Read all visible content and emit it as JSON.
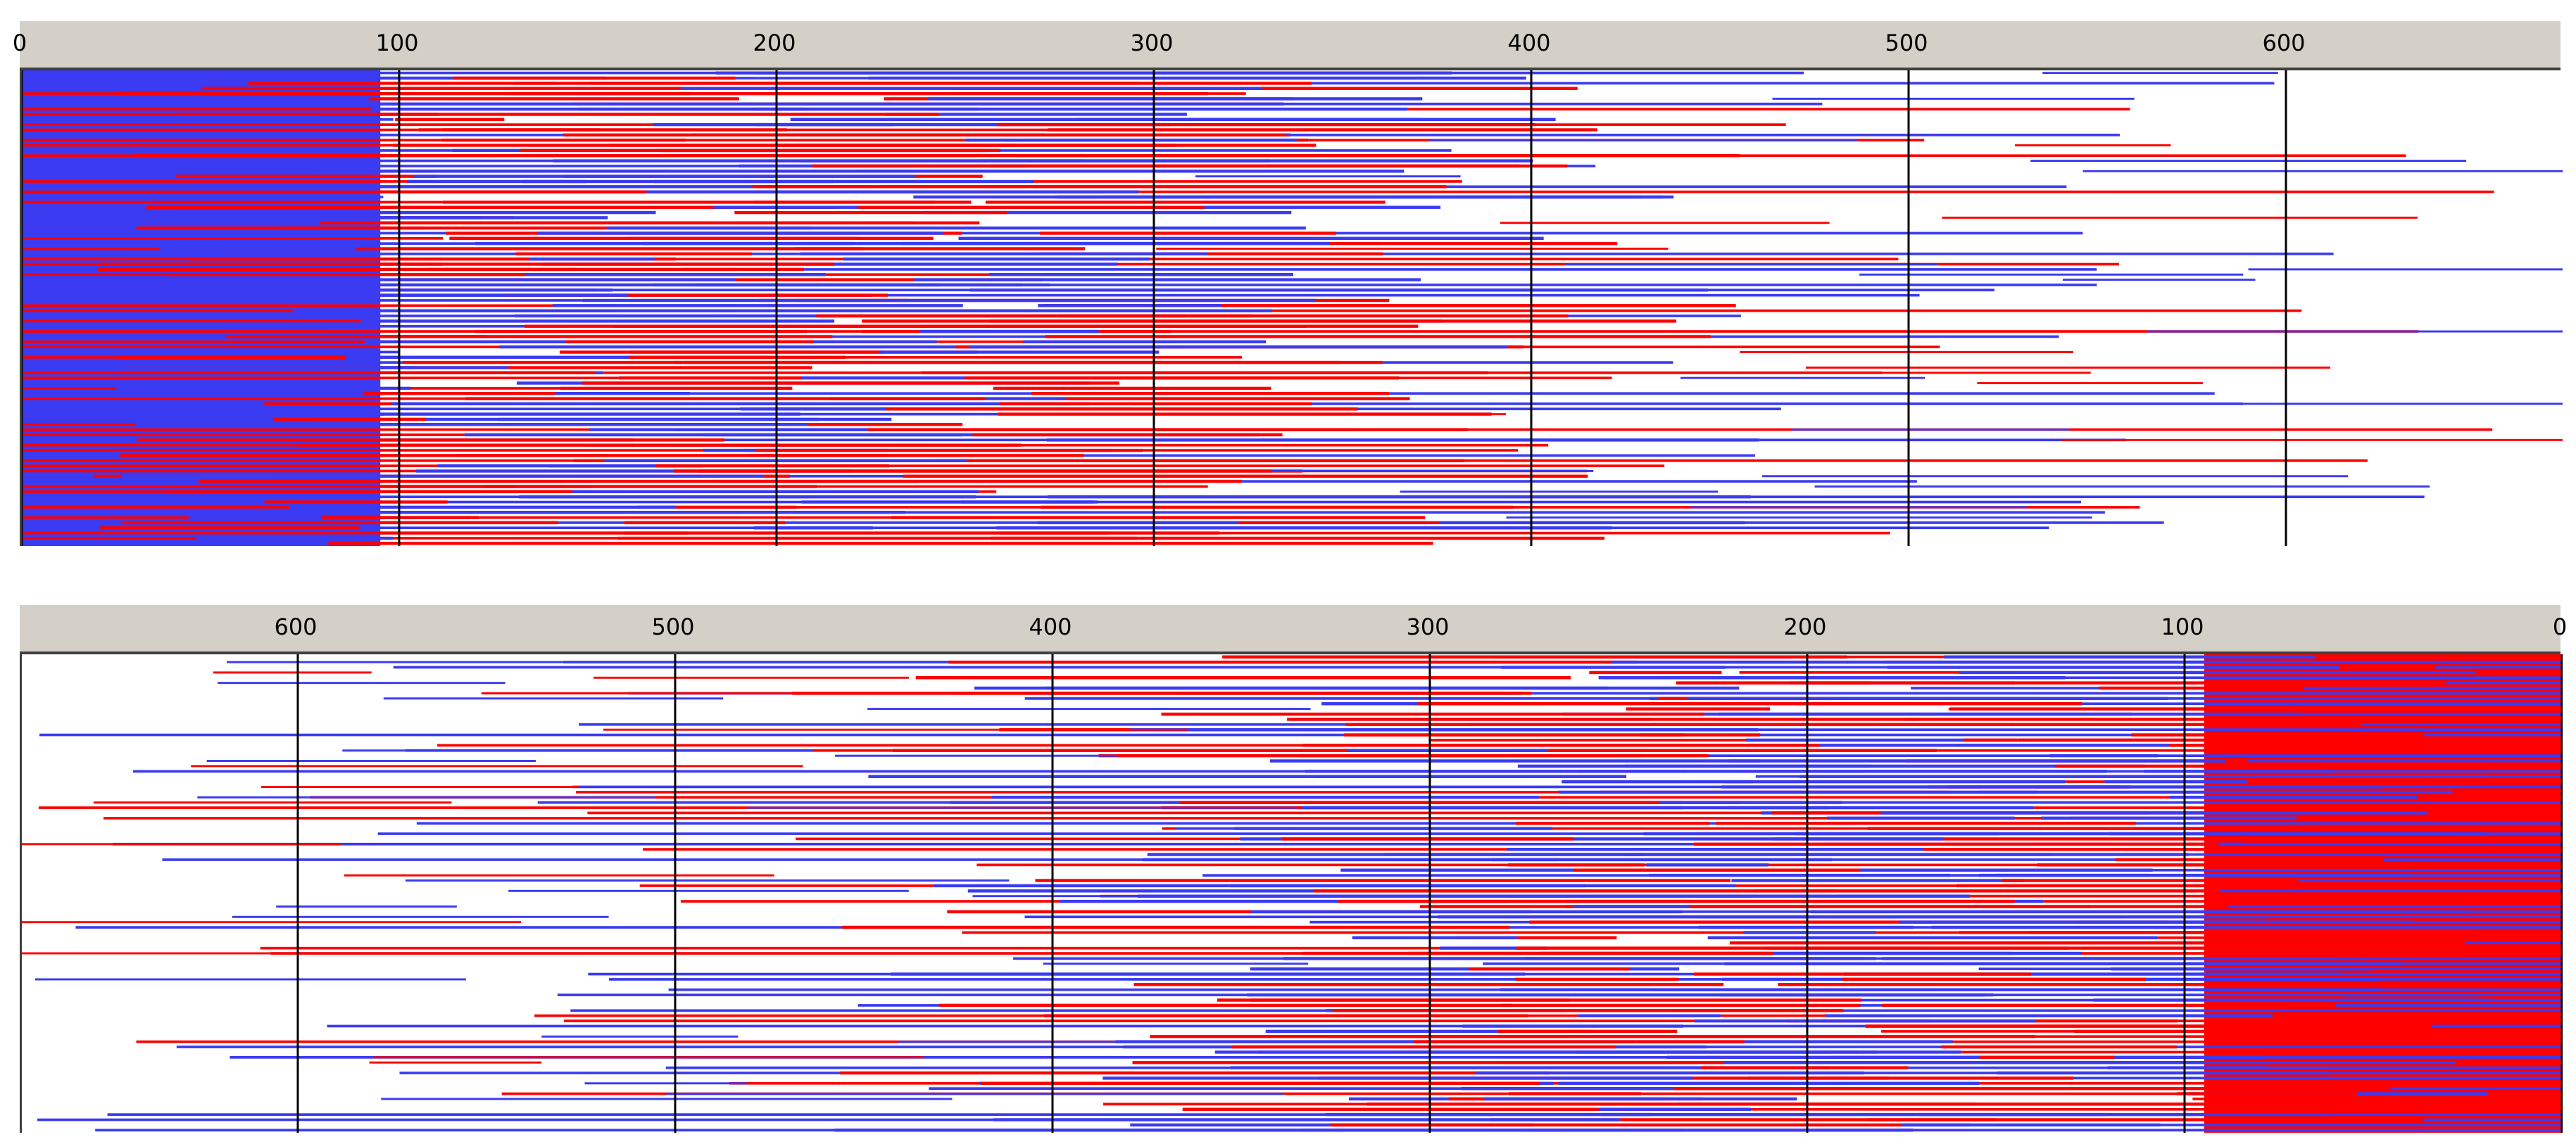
{
  "colors": {
    "forward": "#3b3bf2",
    "reverse": "#ff0000",
    "ruler_bg": "#d4d0c8",
    "grid": "#000000"
  },
  "top_ruler": {
    "labels": [
      "0",
      "100",
      "200",
      "300",
      "400",
      "500",
      "600"
    ]
  },
  "bottom_ruler": {
    "labels": [
      "600",
      "500",
      "400",
      "300",
      "200",
      "100",
      "0"
    ]
  },
  "scale": {
    "top_min": 0,
    "top_max": 673,
    "bottom_max": 674,
    "bottom_min": 0
  },
  "coverage": {
    "read_count_per_panel": 92,
    "top_dense_until": 100,
    "bottom_dense_until": 100
  }
}
